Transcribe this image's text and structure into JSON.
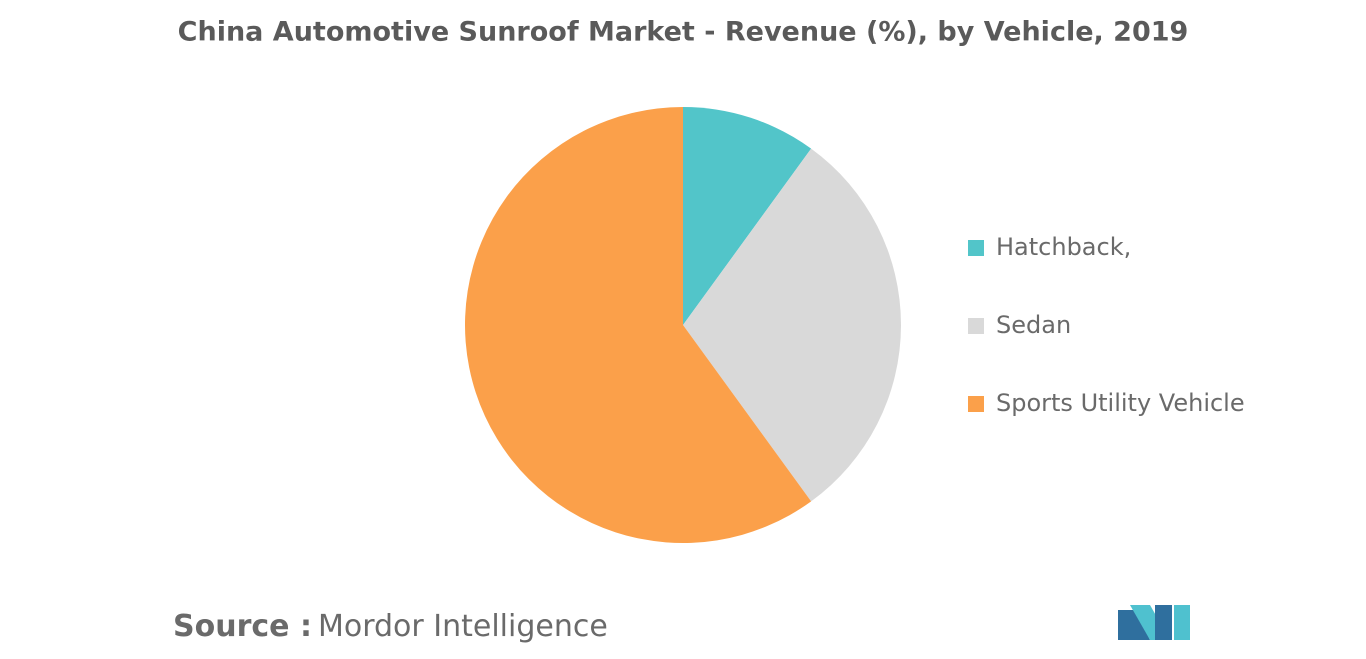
{
  "chart_data": {
    "type": "pie",
    "title": "China Automotive Sunroof Market - Revenue (%), by Vehicle, 2019",
    "categories": [
      "Hatchback,",
      "Sedan",
      "Sports Utility Vehicle"
    ],
    "values": [
      10,
      30,
      60
    ],
    "colors": [
      "#52c5c9",
      "#d9d9d9",
      "#fba04a"
    ]
  },
  "footer": {
    "source_label": "Source :",
    "source": "Mordor Intelligence"
  }
}
